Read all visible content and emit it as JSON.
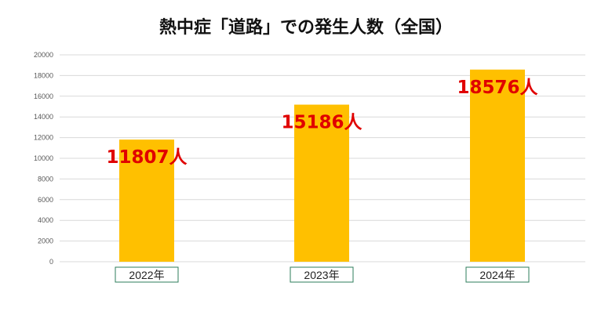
{
  "chart_data": {
    "type": "bar",
    "title": "熱中症「道路」での発生人数（全国）",
    "categories": [
      "2022年",
      "2023年",
      "2024年"
    ],
    "values": [
      11807,
      15186,
      18576
    ],
    "data_labels": [
      "11807人",
      "15186人",
      "18576人"
    ],
    "xlabel": "",
    "ylabel": "",
    "ylim": [
      0,
      20000
    ],
    "yticks": [
      0,
      2000,
      4000,
      6000,
      8000,
      10000,
      12000,
      14000,
      16000,
      18000,
      20000
    ],
    "grid": true,
    "legend": "none",
    "colors": {
      "bar": "#FFC000",
      "data_label": "#E00000",
      "grid": "#D9D9D9",
      "category_box_border": "#2E7D5B"
    }
  }
}
